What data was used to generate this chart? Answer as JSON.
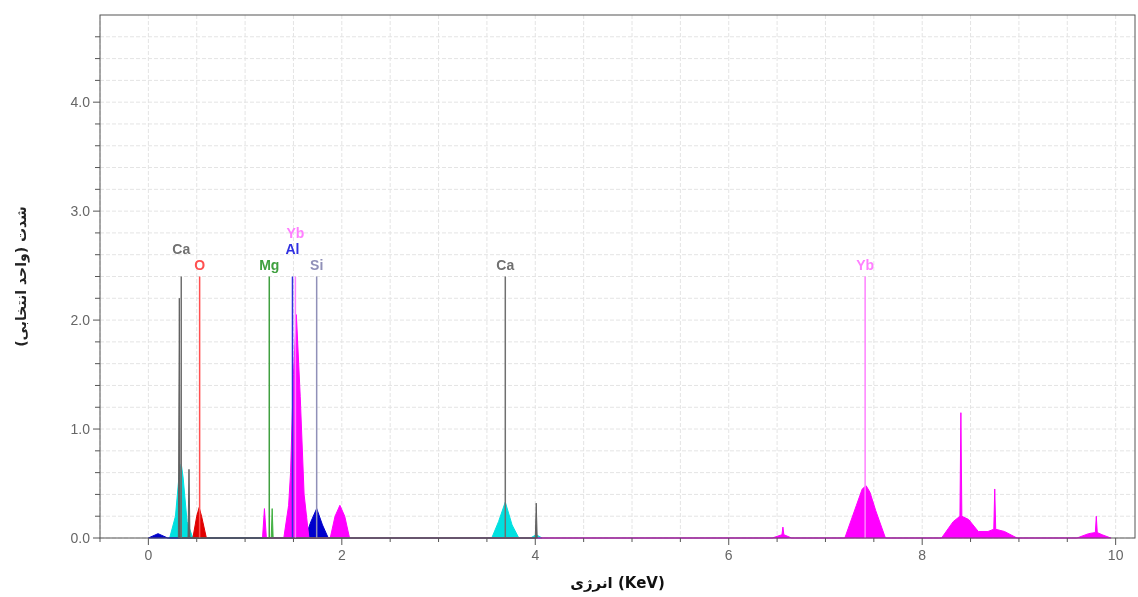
{
  "chart_data": {
    "type": "area",
    "xlabel": "انرژی (KeV)",
    "ylabel": "شدت (واحد انتخابی)",
    "xlim": [
      -0.5,
      10.2
    ],
    "ylim": [
      0,
      4.8
    ],
    "grid": true,
    "xticks": [
      {
        "value": -0.5,
        "label": null
      },
      0,
      {
        "value": 0.5,
        "label": null
      },
      {
        "value": 1,
        "label": null
      },
      {
        "value": 1.5,
        "label": null
      },
      2,
      {
        "value": 2.5,
        "label": null
      },
      {
        "value": 3,
        "label": null
      },
      {
        "value": 3.5,
        "label": null
      },
      4,
      {
        "value": 4.5,
        "label": null
      },
      {
        "value": 5,
        "label": null
      },
      {
        "value": 5.5,
        "label": null
      },
      6,
      {
        "value": 6.5,
        "label": null
      },
      {
        "value": 7,
        "label": null
      },
      {
        "value": 7.5,
        "label": null
      },
      8,
      {
        "value": 8.5,
        "label": null
      },
      {
        "value": 9,
        "label": null
      },
      {
        "value": 9.5,
        "label": null
      },
      10
    ],
    "yticks": [
      {
        "value": 0,
        "label": "0.0"
      },
      {
        "value": 0.2,
        "label": null
      },
      {
        "value": 0.4,
        "label": null
      },
      {
        "value": 0.6,
        "label": null
      },
      {
        "value": 0.8,
        "label": null
      },
      {
        "value": 1,
        "label": "1.0"
      },
      {
        "value": 1.2,
        "label": null
      },
      {
        "value": 1.4,
        "label": null
      },
      {
        "value": 1.6,
        "label": null
      },
      {
        "value": 1.8,
        "label": null
      },
      {
        "value": 2,
        "label": "2.0"
      },
      {
        "value": 2.2,
        "label": null
      },
      {
        "value": 2.4,
        "label": null
      },
      {
        "value": 2.6,
        "label": null
      },
      {
        "value": 2.8,
        "label": null
      },
      {
        "value": 3,
        "label": "3.0"
      },
      {
        "value": 3.2,
        "label": null
      },
      {
        "value": 3.4,
        "label": null
      },
      {
        "value": 3.6,
        "label": null
      },
      {
        "value": 3.8,
        "label": null
      },
      {
        "value": 4,
        "label": "4.0"
      },
      {
        "value": 4.2,
        "label": null
      },
      {
        "value": 4.4,
        "label": null
      },
      {
        "value": 4.6,
        "label": null
      }
    ],
    "series": [
      {
        "color": "#00e0e0",
        "x": [
          0.22,
          0.28,
          0.32,
          0.34,
          0.36,
          0.4,
          0.46,
          3.55,
          3.62,
          3.69,
          3.76,
          3.83,
          3.95,
          4.01,
          4.07
        ],
        "values": [
          0,
          0.2,
          0.6,
          0.68,
          0.55,
          0.15,
          0,
          0,
          0.15,
          0.33,
          0.12,
          0,
          0,
          0.03,
          0
        ]
      },
      {
        "color": "#0000cc",
        "x": [
          0,
          0.1,
          0.2,
          1.62,
          1.68,
          1.74,
          1.8,
          1.86
        ],
        "values": [
          0,
          0.04,
          0,
          0,
          0.15,
          0.27,
          0.12,
          0
        ]
      },
      {
        "color": "#e00000",
        "x": [
          0.46,
          0.5,
          0.525,
          0.55,
          0.6
        ],
        "values": [
          0,
          0.2,
          0.28,
          0.2,
          0
        ]
      },
      {
        "color": "#40b040",
        "x": [
          1.27,
          1.28,
          1.29
        ],
        "values": [
          0,
          0.27,
          0
        ]
      },
      {
        "color": "#ff00ff",
        "x": [
          1.18,
          1.2,
          1.22,
          1.4,
          1.45,
          1.47,
          1.5,
          1.53,
          1.57,
          1.61,
          1.66,
          1.88,
          1.93,
          1.98,
          2.03,
          2.08,
          6.45,
          6.55,
          6.56,
          6.57,
          6.65,
          7.2,
          7.32,
          7.38,
          7.42,
          7.46,
          7.52,
          7.62,
          8.2,
          8.32,
          8.39,
          8.4,
          8.41,
          8.48,
          8.58,
          8.68,
          8.74,
          8.75,
          8.76,
          8.85,
          8.98,
          9.6,
          9.72,
          9.79,
          9.8,
          9.81,
          9.86,
          9.95
        ],
        "values": [
          0,
          0.27,
          0,
          0,
          0.3,
          0.6,
          1.5,
          2.05,
          1.3,
          0.4,
          0,
          0,
          0.2,
          0.3,
          0.2,
          0,
          0,
          0.03,
          0.1,
          0.03,
          0,
          0,
          0.3,
          0.45,
          0.48,
          0.42,
          0.25,
          0,
          0,
          0.15,
          0.2,
          1.15,
          0.2,
          0.17,
          0.06,
          0.06,
          0.08,
          0.45,
          0.08,
          0.06,
          0,
          0,
          0.04,
          0.05,
          0.2,
          0.05,
          0.03,
          0
        ]
      },
      {
        "color": "#606060",
        "x": [
          0.31,
          0.32,
          0.33,
          0.41,
          0.42,
          0.43,
          4,
          4.01,
          4.02
        ],
        "values": [
          0,
          2.2,
          0,
          0,
          0.63,
          0,
          0,
          0.32,
          0
        ]
      },
      {
        "type": "line",
        "name": "O",
        "color": "#ff5050",
        "x": [
          0.53,
          0.53
        ],
        "values": [
          0,
          2.4
        ]
      },
      {
        "type": "line",
        "name": "Ca",
        "color": "#707070",
        "x": [
          0.34,
          0.34
        ],
        "values": [
          0,
          2.4
        ]
      },
      {
        "type": "line",
        "name": "Mg",
        "color": "#40a040",
        "x": [
          1.25,
          1.25
        ],
        "values": [
          0,
          2.4
        ]
      },
      {
        "type": "line",
        "name": "Si",
        "color": "#9090b8",
        "x": [
          1.74,
          1.74
        ],
        "values": [
          0,
          2.4
        ]
      },
      {
        "type": "line",
        "name": "Al",
        "color": "#3030e0",
        "x": [
          1.49,
          1.49
        ],
        "values": [
          0,
          2.4
        ]
      },
      {
        "type": "line",
        "name": "Yb",
        "color": "#ff80ff",
        "x": [
          1.52,
          1.52
        ],
        "values": [
          0,
          2.4
        ]
      },
      {
        "type": "line",
        "name": "Ca",
        "color": "#707070",
        "x": [
          3.69,
          3.69
        ],
        "values": [
          0,
          2.4
        ]
      },
      {
        "type": "line",
        "name": "Yb",
        "color": "#ff80ff",
        "x": [
          7.41,
          7.41
        ],
        "values": [
          0,
          2.4
        ]
      }
    ]
  }
}
